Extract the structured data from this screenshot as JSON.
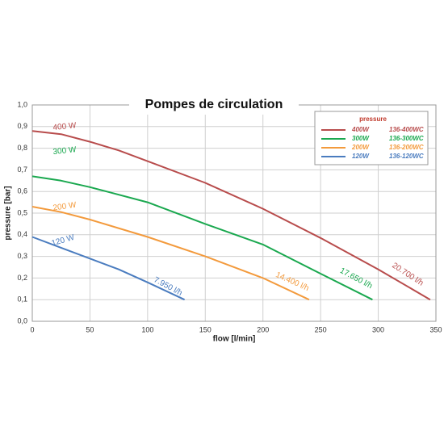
{
  "chart_data": {
    "type": "line",
    "title": "Pompes de circulation",
    "x_label": "flow [l/min]",
    "y_label": "pressure [bar]",
    "legend_title": "pressure",
    "xlim": [
      0,
      350
    ],
    "xticks": [
      0,
      50,
      100,
      150,
      200,
      250,
      300,
      350
    ],
    "ylim": [
      0,
      1
    ],
    "yticks": [
      {
        "value": 0,
        "label": "0,0"
      },
      {
        "value": 0.1,
        "label": "0,1"
      },
      {
        "value": 0.2,
        "label": "0,2"
      },
      {
        "value": 0.3,
        "label": "0,3"
      },
      {
        "value": 0.4,
        "label": "0,4"
      },
      {
        "value": 0.5,
        "label": "0,5"
      },
      {
        "value": 0.6,
        "label": "0,6"
      },
      {
        "value": 0.7,
        "label": "0,7"
      },
      {
        "value": 0.8,
        "label": "0,8"
      },
      {
        "value": 0.9,
        "label": "0,9"
      },
      {
        "value": 1,
        "label": "1,0"
      }
    ],
    "grid": true,
    "legend": "upper right",
    "series": [
      {
        "name": "400W",
        "legend_code": "136-400WC",
        "line_label": "400 W",
        "end_label": "20.700 l/h",
        "color": "#b84c4c",
        "x": [
          0,
          25,
          50,
          75,
          100,
          150,
          200,
          250,
          300,
          345
        ],
        "values": [
          0.88,
          0.865,
          0.83,
          0.79,
          0.74,
          0.64,
          0.52,
          0.385,
          0.24,
          0.1
        ]
      },
      {
        "name": "300W",
        "legend_code": "136-300WC",
        "line_label": "300 W",
        "end_label": "17.650 l/h",
        "color": "#1aa84f",
        "x": [
          0,
          25,
          50,
          100,
          150,
          200,
          250,
          295
        ],
        "values": [
          0.67,
          0.65,
          0.62,
          0.55,
          0.45,
          0.355,
          0.22,
          0.1
        ]
      },
      {
        "name": "200W",
        "legend_code": "136-200WC",
        "line_label": "200 W",
        "end_label": "14.400 l/h",
        "color": "#f39a3c",
        "x": [
          0,
          25,
          50,
          100,
          150,
          200,
          240
        ],
        "values": [
          0.53,
          0.505,
          0.47,
          0.39,
          0.3,
          0.2,
          0.1
        ]
      },
      {
        "name": "120W",
        "legend_code": "136-120WC",
        "line_label": "120 W",
        "end_label": "7.950 l/h",
        "color": "#4a7cbf",
        "x": [
          0,
          25,
          50,
          75,
          100,
          132
        ],
        "values": [
          0.39,
          0.34,
          0.29,
          0.24,
          0.18,
          0.1
        ]
      }
    ]
  }
}
